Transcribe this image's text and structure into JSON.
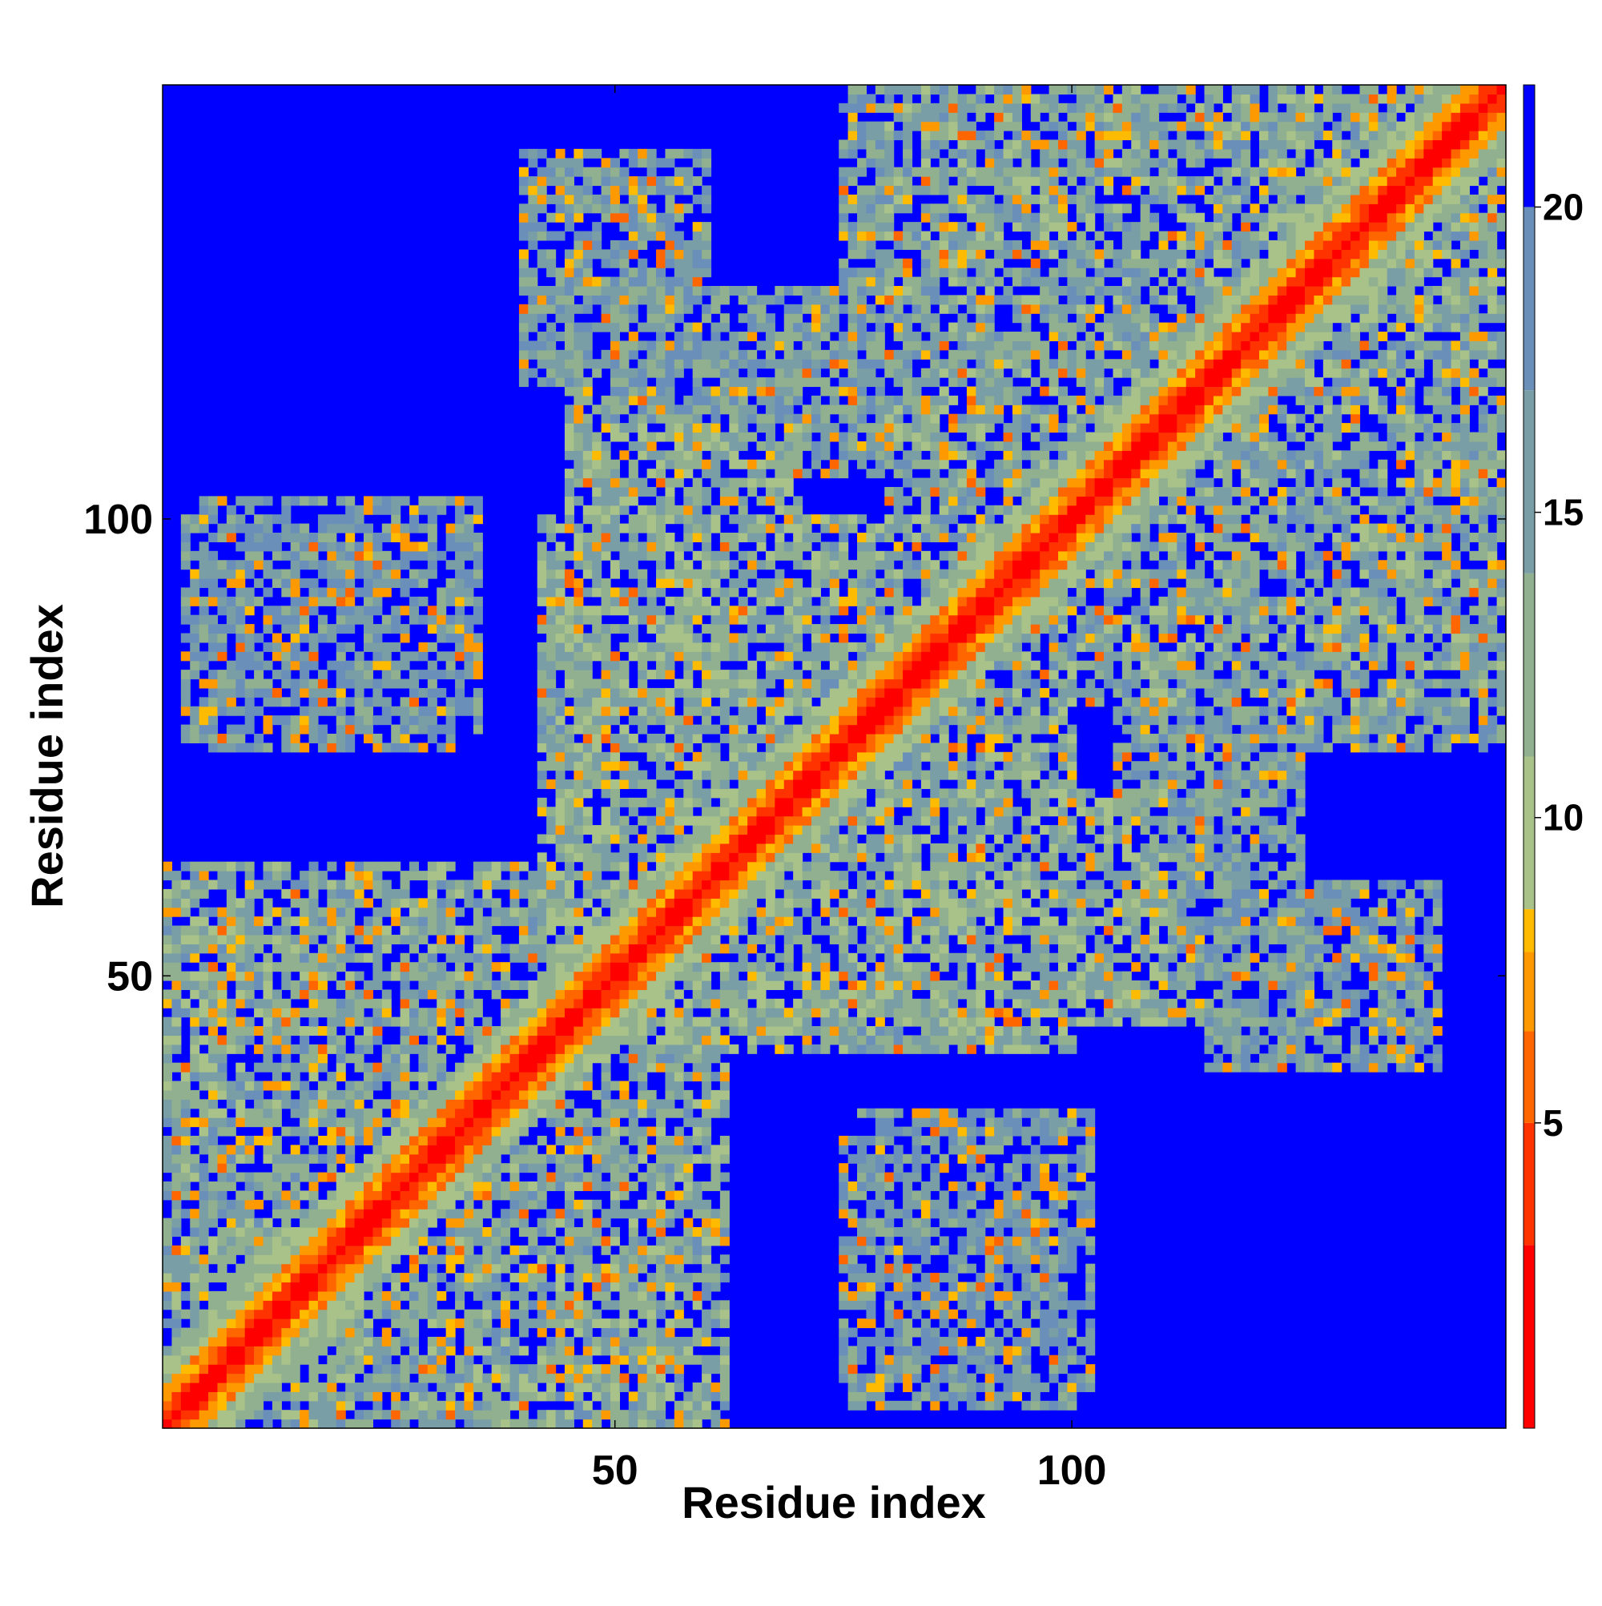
{
  "chart_data": {
    "type": "heatmap",
    "title": "",
    "xlabel": "Residue index",
    "ylabel": "Residue index",
    "n_residues": 147,
    "xlim": [
      0.5,
      147.5
    ],
    "ylim": [
      0.5,
      147.5
    ],
    "x_ticks": [
      50,
      100
    ],
    "y_ticks": [
      50,
      100
    ],
    "colorbar": {
      "ticks": [
        5,
        10,
        15,
        20
      ],
      "range": [
        0,
        22
      ],
      "cutoff": 20,
      "palette": [
        "#ff0000",
        "#ff3300",
        "#ff6600",
        "#ff9900",
        "#ffbb00",
        "#a8c28a",
        "#90b090",
        "#7a9ea6",
        "#6a8fb8",
        "#0000ff"
      ],
      "palette_stops": [
        0,
        3,
        5,
        6.5,
        7.8,
        8.5,
        11,
        14,
        17,
        20
      ]
    },
    "description": "",
    "contact_regions": [
      {
        "x": [
          1,
          62
        ],
        "y": [
          1,
          62
        ],
        "strength": 16
      },
      {
        "x": [
          1,
          40
        ],
        "y": [
          1,
          60
        ],
        "strength": 17
      },
      {
        "x": [
          42,
          100
        ],
        "y": [
          45,
          100
        ],
        "strength": 16
      },
      {
        "x": [
          42,
          70
        ],
        "y": [
          85,
          100
        ],
        "strength": 15
      },
      {
        "x": [
          42,
          110
        ],
        "y": [
          45,
          70
        ],
        "strength": 15
      },
      {
        "x": [
          80,
          147
        ],
        "y": [
          100,
          147
        ],
        "strength": 16
      },
      {
        "x": [
          40,
          60
        ],
        "y": [
          115,
          140
        ],
        "strength": 18
      },
      {
        "x": [
          85,
          130
        ],
        "y": [
          130,
          147
        ],
        "strength": 17
      },
      {
        "x": [
          105,
          125
        ],
        "y": [
          45,
          100
        ],
        "strength": 17
      },
      {
        "x": [
          120,
          147
        ],
        "y": [
          75,
          147
        ],
        "strength": 17
      },
      {
        "x": [
          78,
          102
        ],
        "y": [
          5,
          35
        ],
        "strength": 18.5
      },
      {
        "x": [
          3,
          35
        ],
        "y": [
          75,
          100
        ],
        "strength": 18.5
      }
    ]
  }
}
